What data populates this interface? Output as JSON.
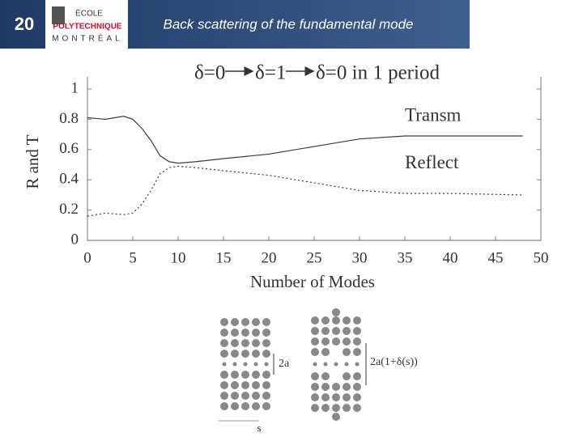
{
  "slide": {
    "number": "20",
    "title": "Back scattering of the fundamental mode",
    "logo": [
      "ÉCOLE",
      "POLYTECHNIQUE",
      "MONTRÉAL"
    ]
  },
  "chart_data": {
    "type": "line",
    "heading": [
      "δ=0",
      "δ=1",
      "δ=0 in 1 period"
    ],
    "x_label": "Number of Modes",
    "y_label": "R and T",
    "x": [
      0,
      2,
      4,
      5,
      6,
      7,
      8,
      9,
      10,
      12,
      15,
      20,
      25,
      30,
      35,
      40,
      48
    ],
    "series": [
      {
        "name": "Transm",
        "color": "#3a3a3a",
        "values": [
          0.81,
          0.8,
          0.82,
          0.8,
          0.74,
          0.66,
          0.56,
          0.52,
          0.51,
          0.52,
          0.54,
          0.57,
          0.62,
          0.67,
          0.69,
          0.69,
          0.69
        ]
      },
      {
        "name": "Reflect",
        "color": "#3a3a3a",
        "dashed": true,
        "values": [
          0.16,
          0.18,
          0.17,
          0.18,
          0.24,
          0.33,
          0.44,
          0.48,
          0.49,
          0.48,
          0.46,
          0.43,
          0.38,
          0.33,
          0.31,
          0.31,
          0.3
        ]
      }
    ],
    "xlim": [
      0,
      50
    ],
    "xticks": [
      0,
      5,
      10,
      15,
      20,
      25,
      30,
      35,
      40,
      45,
      50
    ],
    "ylim": [
      0,
      1
    ],
    "yticks": [
      0,
      0.2,
      0.4,
      0.6,
      0.8,
      1
    ]
  },
  "diagram": {
    "left_label": "2a",
    "right_label": "2a(1+δ(s))",
    "axis_label": "s"
  }
}
